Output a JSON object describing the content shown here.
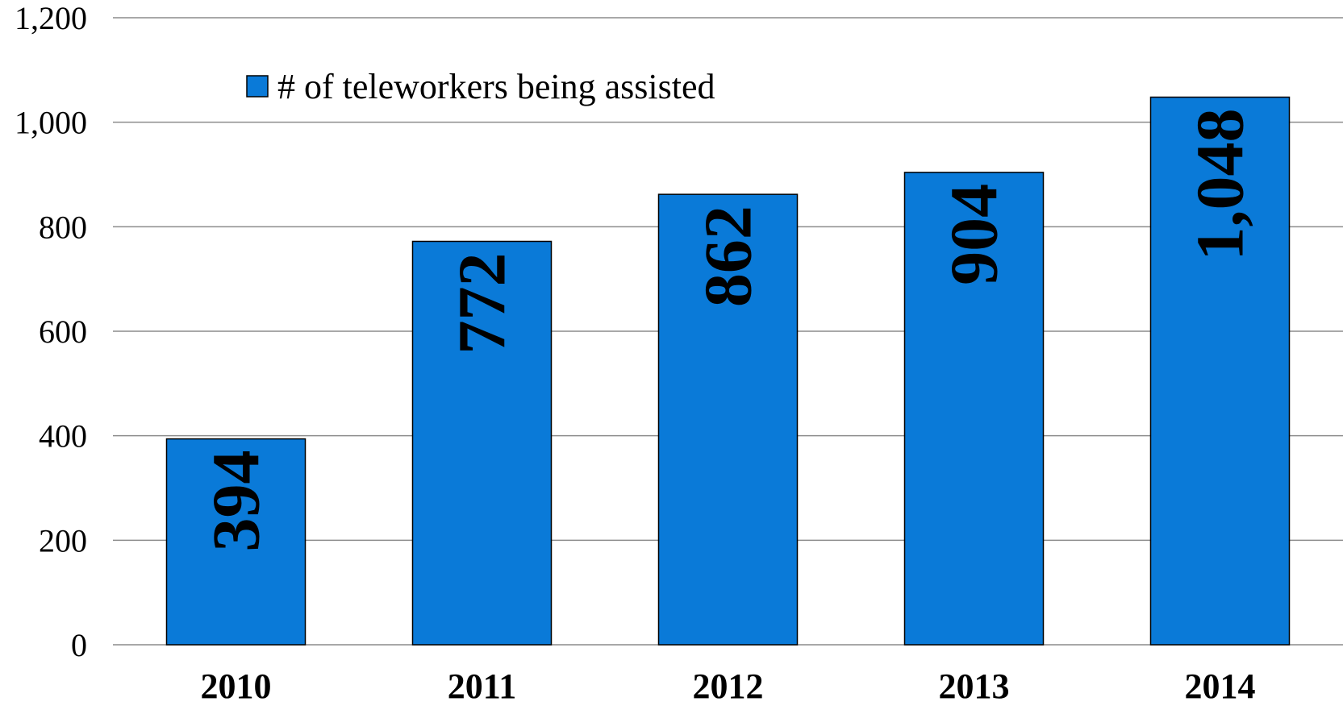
{
  "chart_data": {
    "type": "bar",
    "categories": [
      "2010",
      "2011",
      "2012",
      "2013",
      "2014"
    ],
    "series": [
      {
        "name": "# of teleworkers being assisted",
        "values": [
          394,
          772,
          862,
          904,
          1048
        ],
        "data_labels": [
          "394",
          "772",
          "862",
          "904",
          "1,048"
        ]
      }
    ],
    "ylim": [
      0,
      1200
    ],
    "y_ticks": [
      0,
      200,
      400,
      600,
      800,
      1000,
      1200
    ],
    "y_tick_labels": [
      "0",
      "200",
      "400",
      "600",
      "800",
      "1,000",
      "1,200"
    ],
    "title": "",
    "xlabel": "",
    "ylabel": "",
    "grid": true,
    "legend_position": "top-left",
    "colors": {
      "bar": "#0a7ad8",
      "grid": "#8c8c8c"
    }
  }
}
